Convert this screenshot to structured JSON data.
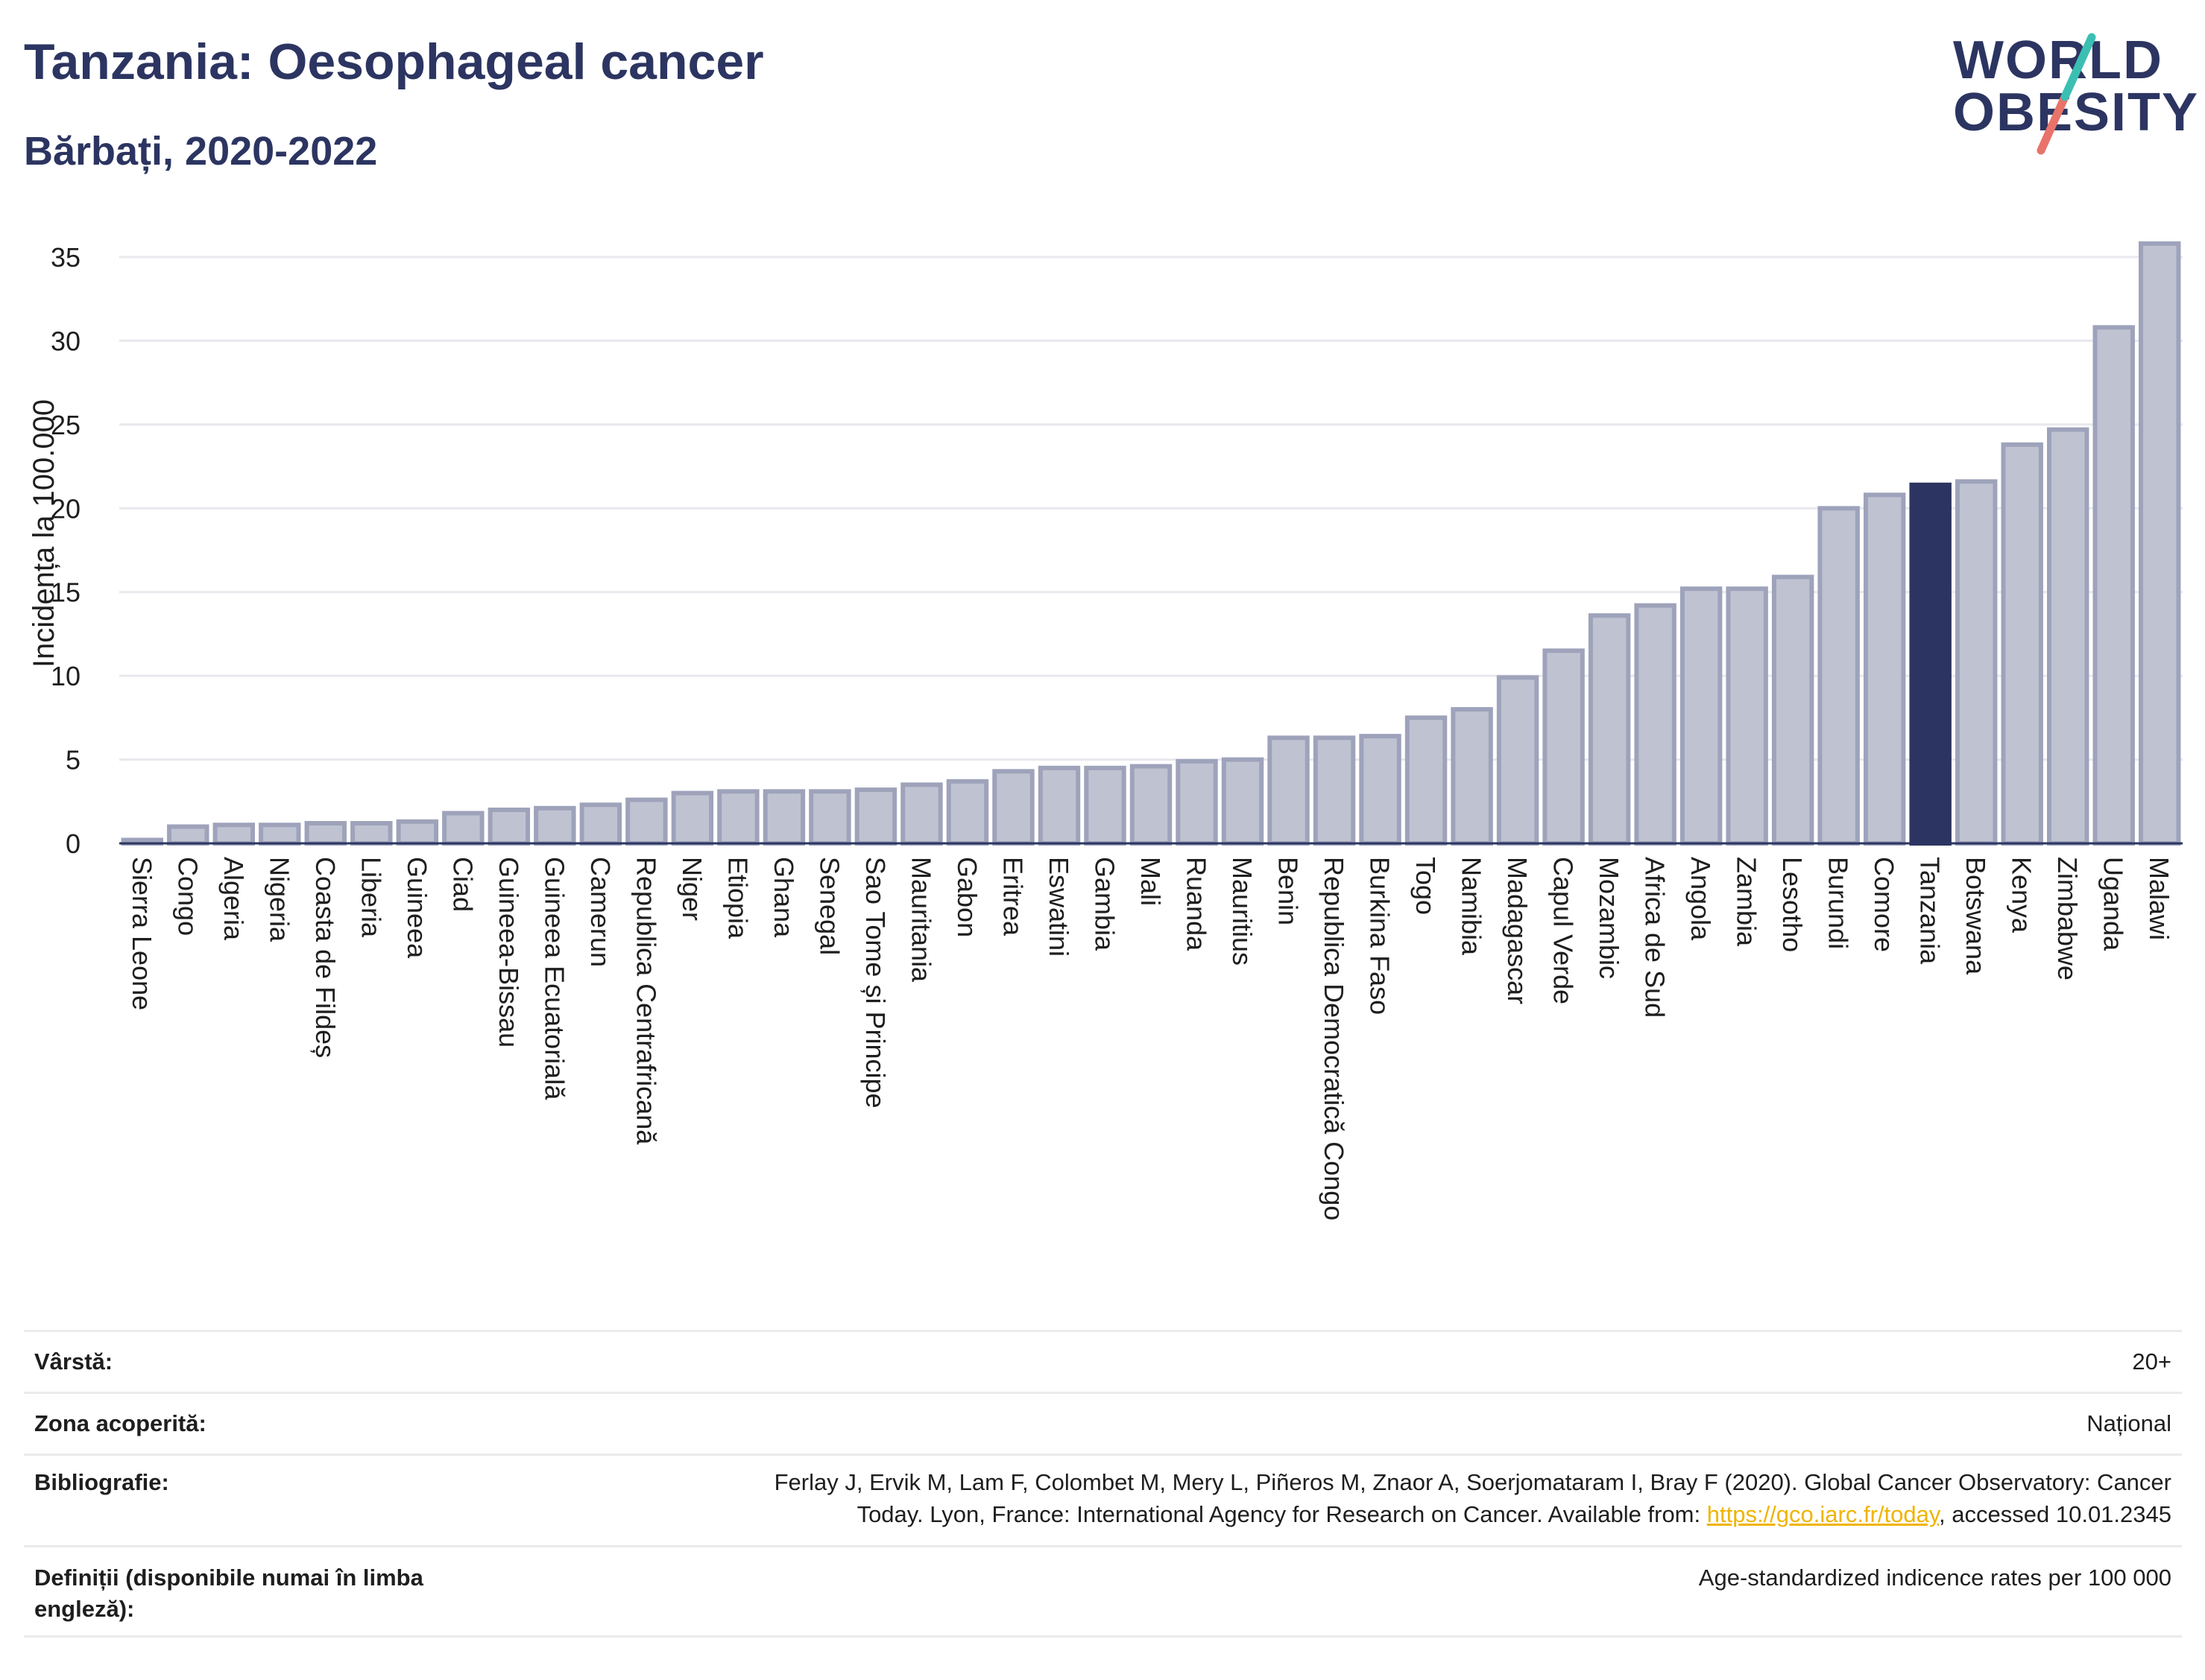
{
  "header": {
    "title": "Tanzania: Oesophageal cancer",
    "subtitle": "Bărbați, 2020-2022"
  },
  "logo": {
    "line1": "WORLD",
    "line2": "OBESITY",
    "colors": {
      "teal": "#3bbfb3",
      "coral": "#e8736a",
      "navy": "#2c3561"
    }
  },
  "chart_data": {
    "type": "bar",
    "ylabel": "Incidența la 100.000",
    "ylim": [
      0,
      37
    ],
    "yticks": [
      0,
      5,
      10,
      15,
      20,
      25,
      30,
      35
    ],
    "grid": true,
    "highlight": "Tanzania",
    "colors": {
      "bar": "#bfc3d1",
      "bar_edge": "#9ea3bb",
      "highlight": "#2c3561",
      "grid": "#e8e8ee"
    },
    "categories": [
      "Sierra Leone",
      "Congo",
      "Algeria",
      "Nigeria",
      "Coasta de Fildeș",
      "Liberia",
      "Guineea",
      "Ciad",
      "Guineea-Bissau",
      "Guineea Ecuatorială",
      "Camerun",
      "Republica Centrafricană",
      "Niger",
      "Etiopia",
      "Ghana",
      "Senegal",
      "Sao Tome și Principe",
      "Mauritania",
      "Gabon",
      "Eritrea",
      "Eswatini",
      "Gambia",
      "Mali",
      "Ruanda",
      "Mauritius",
      "Benin",
      "Republica Democratică Congo",
      "Burkina Faso",
      "Togo",
      "Namibia",
      "Madagascar",
      "Capul Verde",
      "Mozambic",
      "Africa de Sud",
      "Angola",
      "Zambia",
      "Lesotho",
      "Burundi",
      "Comore",
      "Tanzania",
      "Botswana",
      "Kenya",
      "Zimbabwe",
      "Uganda",
      "Malawi"
    ],
    "values": [
      0.2,
      1.0,
      1.1,
      1.1,
      1.2,
      1.2,
      1.3,
      1.8,
      2.0,
      2.1,
      2.3,
      2.6,
      3.0,
      3.1,
      3.1,
      3.1,
      3.2,
      3.5,
      3.7,
      4.3,
      4.5,
      4.5,
      4.6,
      4.9,
      5.0,
      6.3,
      6.3,
      6.4,
      7.5,
      8.0,
      9.9,
      11.5,
      13.6,
      14.2,
      15.2,
      15.2,
      15.9,
      20.0,
      20.8,
      21.4,
      21.6,
      23.8,
      24.7,
      30.8,
      35.8
    ]
  },
  "info": {
    "rows": [
      {
        "label": "Vârstă:",
        "value": "20+"
      },
      {
        "label": "Zona acoperită:",
        "value": "Național"
      },
      {
        "label": "Bibliografie:",
        "value_line1": "Ferlay J, Ervik M, Lam F, Colombet M, Mery L, Piñeros M, Znaor A, Soerjomataram I, Bray F (2020). Global Cancer Observatory: Cancer",
        "value_line2_pre": "Today. Lyon, France: International Agency for Research on Cancer. Available from: ",
        "link": "https://gco.iarc.fr/today",
        "value_line2_post": ", accessed 10.01.2345"
      },
      {
        "label": "Definiții (disponibile numai în limba engleză):",
        "value": "Age-standardized indicence rates per 100 000"
      }
    ]
  }
}
